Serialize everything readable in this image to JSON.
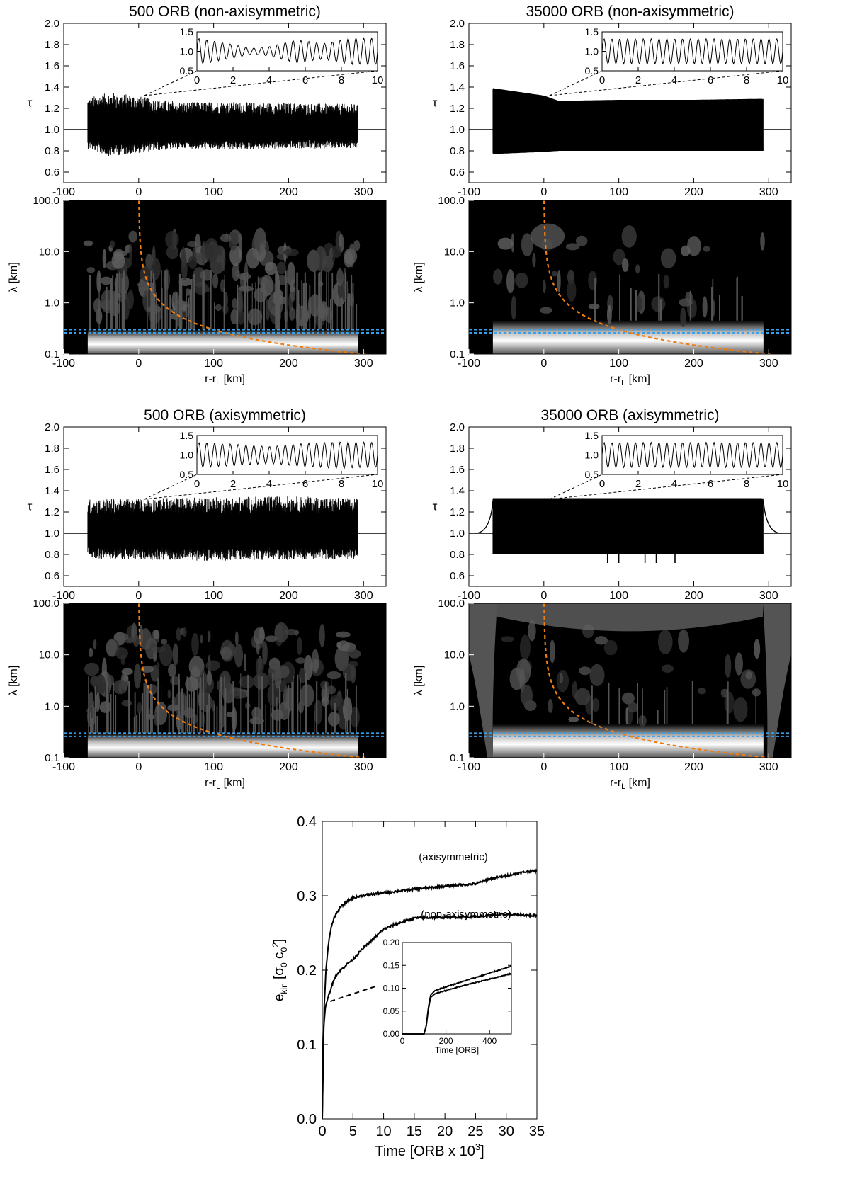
{
  "chart_data": [
    {
      "panel": "tau-profile",
      "type": "line",
      "title": "500 ORB (non-axisymmetric)",
      "xlabel": "",
      "ylabel": "τ",
      "xlim": [
        -100,
        330
      ],
      "ylim": [
        0.5,
        2.0
      ],
      "xticks": [
        "-100",
        "0",
        "100",
        "200",
        "300"
      ],
      "yticks": [
        "0.6",
        "0.8",
        "1.0",
        "1.2",
        "1.4",
        "1.6",
        "1.8",
        "2.0"
      ],
      "oscillating_region": [
        -68,
        293
      ],
      "baseline": 1.0,
      "envelope_upper": [
        [
          -68,
          1.3
        ],
        [
          -40,
          1.35
        ],
        [
          -10,
          1.33
        ],
        [
          20,
          1.29
        ],
        [
          60,
          1.26
        ],
        [
          120,
          1.26
        ],
        [
          200,
          1.25
        ],
        [
          293,
          1.24
        ]
      ],
      "envelope_lower": [
        [
          -68,
          0.82
        ],
        [
          -40,
          0.75
        ],
        [
          -10,
          0.77
        ],
        [
          20,
          0.8
        ],
        [
          60,
          0.82
        ],
        [
          120,
          0.81
        ],
        [
          200,
          0.82
        ],
        [
          293,
          0.82
        ]
      ],
      "inset": {
        "xlim": [
          0,
          10
        ],
        "ylim": [
          0.5,
          1.5
        ],
        "xticks": [
          "0",
          "2",
          "4",
          "6",
          "8",
          "10"
        ],
        "yticks": [
          "0.5",
          "1.0",
          "1.5"
        ],
        "amplitude": [
          [
            0,
            0.34
          ],
          [
            1.5,
            0.22
          ],
          [
            3,
            0.08
          ],
          [
            4,
            0.12
          ],
          [
            5.5,
            0.3
          ],
          [
            7,
            0.2
          ],
          [
            8.5,
            0.34
          ],
          [
            10,
            0.34
          ]
        ]
      }
    },
    {
      "panel": "wavelet-spectrum",
      "type": "heatmap",
      "title": "",
      "xlabel": "r-rL [km]",
      "ylabel": "λ [km]",
      "xlim": [
        -100,
        330
      ],
      "ylim": [
        0.1,
        100.0
      ],
      "yscale": "log",
      "xticks": [
        "-100",
        "0",
        "100",
        "200",
        "300"
      ],
      "yticks": [
        "0.1",
        "1.0",
        "10.0",
        "100.0"
      ],
      "blue_dashed_lambda": [
        0.26,
        0.3
      ],
      "orange_curve": "λ = 30 / (r-rL)",
      "bright_band_lambda": [
        0.13,
        0.3
      ]
    },
    {
      "panel": "tau-profile",
      "type": "line",
      "title": "35000 ORB (non-axisymmetric)",
      "xlabel": "",
      "ylabel": "τ",
      "xlim": [
        -100,
        330
      ],
      "ylim": [
        0.5,
        2.0
      ],
      "xticks": [
        "-100",
        "0",
        "100",
        "200",
        "300"
      ],
      "yticks": [
        "0.6",
        "0.8",
        "1.0",
        "1.2",
        "1.4",
        "1.6",
        "1.8",
        "2.0"
      ],
      "oscillating_region": [
        -68,
        293
      ],
      "baseline": 1.0,
      "envelope_upper": [
        [
          -68,
          1.39
        ],
        [
          0,
          1.32
        ],
        [
          20,
          1.27
        ],
        [
          100,
          1.28
        ],
        [
          200,
          1.28
        ],
        [
          293,
          1.29
        ]
      ],
      "envelope_lower": [
        [
          -68,
          0.77
        ],
        [
          0,
          0.79
        ],
        [
          20,
          0.8
        ],
        [
          100,
          0.8
        ],
        [
          200,
          0.8
        ],
        [
          293,
          0.8
        ]
      ],
      "inset": {
        "xlim": [
          0,
          10
        ],
        "ylim": [
          0.5,
          1.5
        ],
        "xticks": [
          "0",
          "2",
          "4",
          "6",
          "8",
          "10"
        ],
        "yticks": [
          "0.5",
          "1.0",
          "1.5"
        ],
        "amplitude": [
          [
            0,
            0.32
          ],
          [
            10,
            0.32
          ]
        ]
      }
    },
    {
      "panel": "wavelet-spectrum",
      "type": "heatmap",
      "title": "",
      "xlabel": "r-rL [km]",
      "ylabel": "λ [km]",
      "xlim": [
        -100,
        330
      ],
      "ylim": [
        0.1,
        100.0
      ],
      "yscale": "log",
      "xticks": [
        "-100",
        "0",
        "100",
        "200",
        "300"
      ],
      "yticks": [
        "0.1",
        "1.0",
        "10.0",
        "100.0"
      ],
      "blue_dashed_lambda": [
        0.26,
        0.3
      ],
      "orange_curve": "λ = 30 / (r-rL)",
      "bright_band_lambda": [
        0.2,
        0.45
      ]
    },
    {
      "panel": "tau-profile",
      "type": "line",
      "title": "500 ORB (axisymmetric)",
      "xlabel": "",
      "ylabel": "τ",
      "xlim": [
        -100,
        330
      ],
      "ylim": [
        0.5,
        2.0
      ],
      "xticks": [
        "-100",
        "0",
        "100",
        "200",
        "300"
      ],
      "yticks": [
        "0.6",
        "0.8",
        "1.0",
        "1.2",
        "1.4",
        "1.6",
        "1.8",
        "2.0"
      ],
      "oscillating_region": [
        -68,
        293
      ],
      "baseline": 1.0,
      "envelope_upper": [
        [
          -68,
          1.32
        ],
        [
          0,
          1.33
        ],
        [
          100,
          1.34
        ],
        [
          200,
          1.35
        ],
        [
          293,
          1.33
        ]
      ],
      "envelope_lower": [
        [
          -68,
          0.76
        ],
        [
          0,
          0.75
        ],
        [
          100,
          0.74
        ],
        [
          200,
          0.75
        ],
        [
          293,
          0.76
        ]
      ],
      "inset": {
        "xlim": [
          0,
          10
        ],
        "ylim": [
          0.5,
          1.5
        ],
        "xticks": [
          "0",
          "2",
          "4",
          "6",
          "8",
          "10"
        ],
        "yticks": [
          "0.5",
          "1.0",
          "1.5"
        ],
        "amplitude": [
          [
            0,
            0.32
          ],
          [
            2,
            0.28
          ],
          [
            4,
            0.22
          ],
          [
            6,
            0.3
          ],
          [
            8,
            0.34
          ],
          [
            10,
            0.32
          ]
        ]
      }
    },
    {
      "panel": "wavelet-spectrum",
      "type": "heatmap",
      "title": "",
      "xlabel": "r-rL [km]",
      "ylabel": "λ [km]",
      "xlim": [
        -100,
        330
      ],
      "ylim": [
        0.1,
        100.0
      ],
      "yscale": "log",
      "xticks": [
        "-100",
        "0",
        "100",
        "200",
        "300"
      ],
      "yticks": [
        "0.1",
        "1.0",
        "10.0",
        "100.0"
      ],
      "blue_dashed_lambda": [
        0.26,
        0.3
      ],
      "orange_curve": "λ = 30 / (r-rL)",
      "bright_band_lambda": [
        0.13,
        0.3
      ]
    },
    {
      "panel": "tau-profile",
      "type": "line",
      "title": "35000 ORB (axisymmetric)",
      "xlabel": "",
      "ylabel": "τ",
      "xlim": [
        -100,
        330
      ],
      "ylim": [
        0.5,
        2.0
      ],
      "xticks": [
        "-100",
        "0",
        "100",
        "200",
        "300"
      ],
      "yticks": [
        "0.6",
        "0.8",
        "1.0",
        "1.2",
        "1.4",
        "1.6",
        "1.8",
        "2.0"
      ],
      "oscillating_region": [
        -68,
        293
      ],
      "baseline": 1.0,
      "envelope_upper": [
        [
          -68,
          1.33
        ],
        [
          293,
          1.33
        ]
      ],
      "envelope_lower": [
        [
          -68,
          0.8
        ],
        [
          293,
          0.8
        ]
      ],
      "inset": {
        "xlim": [
          0,
          10
        ],
        "ylim": [
          0.5,
          1.5
        ],
        "xticks": [
          "0",
          "2",
          "4",
          "6",
          "8",
          "10"
        ],
        "yticks": [
          "0.5",
          "1.0",
          "1.5"
        ],
        "amplitude": [
          [
            0,
            0.32
          ],
          [
            10,
            0.32
          ]
        ]
      }
    },
    {
      "panel": "wavelet-spectrum",
      "type": "heatmap",
      "title": "",
      "xlabel": "r-rL [km]",
      "ylabel": "λ [km]",
      "xlim": [
        -100,
        330
      ],
      "ylim": [
        0.1,
        100.0
      ],
      "yscale": "log",
      "xticks": [
        "-100",
        "0",
        "100",
        "200",
        "300"
      ],
      "yticks": [
        "0.1",
        "1.0",
        "10.0",
        "100.0"
      ],
      "blue_dashed_lambda": [
        0.26,
        0.3
      ],
      "orange_curve": "λ = 30 / (r-rL)",
      "bright_band_lambda": [
        0.2,
        0.45
      ]
    },
    {
      "panel": "kinetic-energy",
      "type": "line",
      "title": "",
      "xlabel": "Time [ORB x 10³]",
      "ylabel": "e_kin [σ0 c0²]",
      "xlim": [
        0,
        35
      ],
      "ylim": [
        0.0,
        0.4
      ],
      "xticks": [
        "0",
        "5",
        "10",
        "15",
        "20",
        "25",
        "30",
        "35"
      ],
      "yticks": [
        "0.0",
        "0.1",
        "0.2",
        "0.3",
        "0.4"
      ],
      "series": [
        {
          "name": "(axisymmetric)",
          "x": [
            0,
            0.3,
            0.6,
            1,
            1.5,
            2,
            3,
            4,
            5,
            7,
            10,
            15,
            20,
            25,
            27,
            30,
            33,
            35
          ],
          "y": [
            0.0,
            0.15,
            0.2,
            0.235,
            0.26,
            0.272,
            0.285,
            0.292,
            0.297,
            0.301,
            0.304,
            0.309,
            0.313,
            0.316,
            0.322,
            0.327,
            0.332,
            0.334
          ]
        },
        {
          "name": "(non-axisymmetric)",
          "x": [
            0,
            0.2,
            0.5,
            1,
            2,
            3,
            5,
            7,
            10,
            12,
            15,
            20,
            25,
            30,
            33,
            35
          ],
          "y": [
            0.0,
            0.12,
            0.15,
            0.165,
            0.19,
            0.2,
            0.215,
            0.232,
            0.255,
            0.262,
            0.27,
            0.271,
            0.272,
            0.275,
            0.274,
            0.273
          ]
        }
      ],
      "inset": {
        "xlabel": "Time [ORB]",
        "xlim": [
          0,
          500
        ],
        "ylim": [
          0.0,
          0.2
        ],
        "xticks": [
          "0",
          "200",
          "400"
        ],
        "yticks": [
          "0.00",
          "0.05",
          "0.10",
          "0.15",
          "0.20"
        ],
        "series": [
          {
            "x": [
              0,
              100,
              110,
              120,
              130,
              150,
              200,
              300,
              400,
              500
            ],
            "y": [
              0.0,
              0.0,
              0.02,
              0.06,
              0.085,
              0.095,
              0.103,
              0.118,
              0.133,
              0.148
            ]
          },
          {
            "x": [
              0,
              100,
              110,
              120,
              130,
              150,
              200,
              300,
              400,
              500
            ],
            "y": [
              0.0,
              0.0,
              0.018,
              0.055,
              0.08,
              0.088,
              0.095,
              0.108,
              0.12,
              0.132
            ]
          }
        ]
      }
    }
  ]
}
